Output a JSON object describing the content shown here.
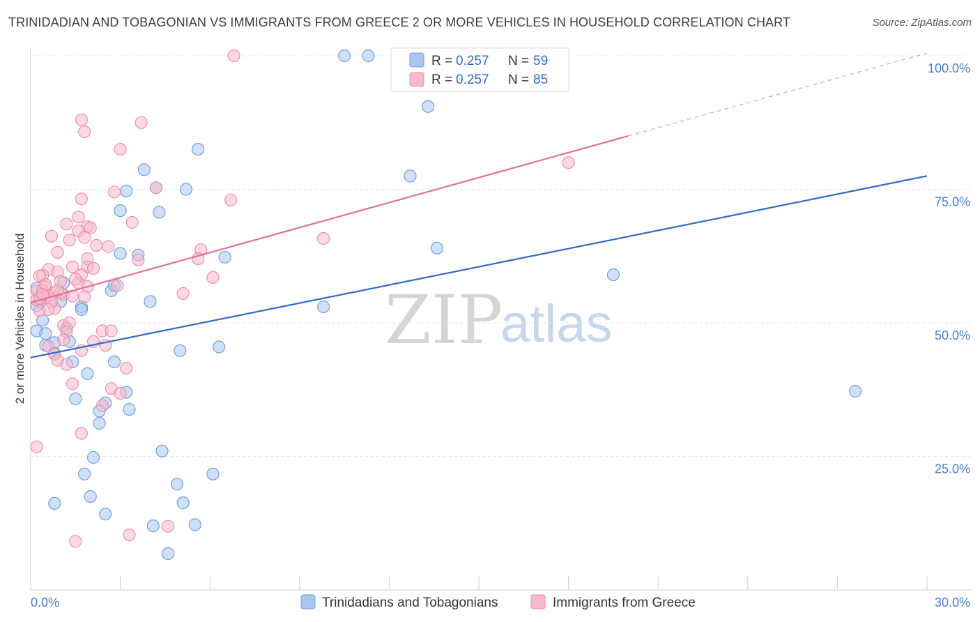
{
  "title": "TRINIDADIAN AND TOBAGONIAN VS IMMIGRANTS FROM GREECE 2 OR MORE VEHICLES IN HOUSEHOLD CORRELATION CHART",
  "source": "Source: ZipAtlas.com",
  "watermark": {
    "zip": "ZIP",
    "atlas": "atlas"
  },
  "colors": {
    "blue_fill": "#a9c6ef",
    "blue_stroke": "#6f9fe0",
    "blue_line": "#2f6bc4",
    "pink_fill": "#f7b9cb",
    "pink_stroke": "#ec8eac",
    "pink_line": "#e0709a"
  },
  "legend": {
    "r_label": "R =",
    "n_label": "N =",
    "blue": {
      "r": "0.257",
      "n": "59"
    },
    "pink": {
      "r": "0.257",
      "n": "85"
    }
  },
  "chart_data": {
    "type": "scatter",
    "title": "TRINIDADIAN AND TOBAGONIAN VS IMMIGRANTS FROM GREECE 2 OR MORE VEHICLES IN HOUSEHOLD CORRELATION CHART",
    "xlabel": "",
    "ylabel": "2 or more Vehicles in Household",
    "xlim": [
      0,
      30
    ],
    "ylim": [
      0,
      100
    ],
    "x_tick_labels": [
      "0.0%",
      "30.0%"
    ],
    "y_tick_labels": [
      "100.0%",
      "75.0%",
      "50.0%",
      "25.0%"
    ],
    "y_ticks": [
      100,
      75,
      50,
      25
    ],
    "series": [
      {
        "name": "Trinidadians and Tobagonians",
        "color": "blue",
        "trend": {
          "x": [
            0,
            30
          ],
          "y": [
            43.5,
            77.5
          ]
        },
        "points": [
          [
            10.5,
            100
          ],
          [
            11.3,
            100
          ],
          [
            13.3,
            90.5
          ],
          [
            5.6,
            82.5
          ],
          [
            3.8,
            78.7
          ],
          [
            3.2,
            74.7
          ],
          [
            4.2,
            75.3
          ],
          [
            5.2,
            75.0
          ],
          [
            12.7,
            77.5
          ],
          [
            3.0,
            71.0
          ],
          [
            4.3,
            70.7
          ],
          [
            6.5,
            62.3
          ],
          [
            3.0,
            63.0
          ],
          [
            3.6,
            62.7
          ],
          [
            13.6,
            64.0
          ],
          [
            19.5,
            59.0
          ],
          [
            1.1,
            57.5
          ],
          [
            2.7,
            56.0
          ],
          [
            2.8,
            57.0
          ],
          [
            0.2,
            56.5
          ],
          [
            0.3,
            54.0
          ],
          [
            1.0,
            54.0
          ],
          [
            1.7,
            53.0
          ],
          [
            1.7,
            52.5
          ],
          [
            4.0,
            54.0
          ],
          [
            9.8,
            53.0
          ],
          [
            0.4,
            50.5
          ],
          [
            1.2,
            49.0
          ],
          [
            0.2,
            48.5
          ],
          [
            0.5,
            48.0
          ],
          [
            0.8,
            46.3
          ],
          [
            1.3,
            46.5
          ],
          [
            0.5,
            45.8
          ],
          [
            5.0,
            44.8
          ],
          [
            6.3,
            45.5
          ],
          [
            0.8,
            44.3
          ],
          [
            1.4,
            42.7
          ],
          [
            2.8,
            42.7
          ],
          [
            1.9,
            40.5
          ],
          [
            27.6,
            37.2
          ],
          [
            3.2,
            37.0
          ],
          [
            1.5,
            35.8
          ],
          [
            2.5,
            35.0
          ],
          [
            2.3,
            33.5
          ],
          [
            3.3,
            33.8
          ],
          [
            2.3,
            31.2
          ],
          [
            4.4,
            26.0
          ],
          [
            2.1,
            24.8
          ],
          [
            1.8,
            21.7
          ],
          [
            6.1,
            21.7
          ],
          [
            4.9,
            19.8
          ],
          [
            2.0,
            17.5
          ],
          [
            0.8,
            16.2
          ],
          [
            5.1,
            16.3
          ],
          [
            2.5,
            14.2
          ],
          [
            4.1,
            12.0
          ],
          [
            5.5,
            12.2
          ],
          [
            4.6,
            6.8
          ],
          [
            0.2,
            53.2
          ]
        ]
      },
      {
        "name": "Immigrants from Greece",
        "color": "pink",
        "trend": {
          "x": [
            0,
            20
          ],
          "y": [
            53.8,
            85
          ]
        },
        "trend_dashed": {
          "x": [
            20,
            30
          ],
          "y": [
            85,
            100.5
          ]
        },
        "points": [
          [
            6.8,
            100
          ],
          [
            1.7,
            88.0
          ],
          [
            3.7,
            87.5
          ],
          [
            1.8,
            85.8
          ],
          [
            3.0,
            82.5
          ],
          [
            18.0,
            80.0
          ],
          [
            4.2,
            75.3
          ],
          [
            2.8,
            74.5
          ],
          [
            1.7,
            73.2
          ],
          [
            6.7,
            73.0
          ],
          [
            1.6,
            69.8
          ],
          [
            1.2,
            68.5
          ],
          [
            3.4,
            68.8
          ],
          [
            1.9,
            68.0
          ],
          [
            2.0,
            67.8
          ],
          [
            1.6,
            67.2
          ],
          [
            0.7,
            66.2
          ],
          [
            1.8,
            66.0
          ],
          [
            9.8,
            65.8
          ],
          [
            1.3,
            65.5
          ],
          [
            2.2,
            64.5
          ],
          [
            2.6,
            64.3
          ],
          [
            5.7,
            63.7
          ],
          [
            0.9,
            63.2
          ],
          [
            1.9,
            62.0
          ],
          [
            3.6,
            61.8
          ],
          [
            5.6,
            62.0
          ],
          [
            1.9,
            60.5
          ],
          [
            1.4,
            60.5
          ],
          [
            0.6,
            60.0
          ],
          [
            0.9,
            59.5
          ],
          [
            1.7,
            59.0
          ],
          [
            0.4,
            58.9
          ],
          [
            0.3,
            58.8
          ],
          [
            6.1,
            58.5
          ],
          [
            1.0,
            57.8
          ],
          [
            1.6,
            57.5
          ],
          [
            1.9,
            56.8
          ],
          [
            2.9,
            57.0
          ],
          [
            0.5,
            56.7
          ],
          [
            0.2,
            56.0
          ],
          [
            0.4,
            56.0
          ],
          [
            0.8,
            55.7
          ],
          [
            1.1,
            55.3
          ],
          [
            0.6,
            55.0
          ],
          [
            0.5,
            54.8
          ],
          [
            0.3,
            54.5
          ],
          [
            5.1,
            55.5
          ],
          [
            1.4,
            55.0
          ],
          [
            0.2,
            54.3
          ],
          [
            0.8,
            52.7
          ],
          [
            0.3,
            52.3
          ],
          [
            1.1,
            49.5
          ],
          [
            1.3,
            50.0
          ],
          [
            1.2,
            48.3
          ],
          [
            2.4,
            48.5
          ],
          [
            2.7,
            48.5
          ],
          [
            2.1,
            46.5
          ],
          [
            1.1,
            46.8
          ],
          [
            2.5,
            45.8
          ],
          [
            0.6,
            45.6
          ],
          [
            1.7,
            44.8
          ],
          [
            0.8,
            44.1
          ],
          [
            0.9,
            43.0
          ],
          [
            1.2,
            42.2
          ],
          [
            3.2,
            41.5
          ],
          [
            1.4,
            38.6
          ],
          [
            2.7,
            37.7
          ],
          [
            3.0,
            36.8
          ],
          [
            2.4,
            34.5
          ],
          [
            1.7,
            29.3
          ],
          [
            0.2,
            26.8
          ],
          [
            3.3,
            10.3
          ],
          [
            4.6,
            11.9
          ],
          [
            1.5,
            9.1
          ],
          [
            0.3,
            54.6
          ],
          [
            0.5,
            57.2
          ],
          [
            1.0,
            55.6
          ],
          [
            0.7,
            53.9
          ],
          [
            1.5,
            58.2
          ],
          [
            2.1,
            60.2
          ],
          [
            0.9,
            56.1
          ],
          [
            0.6,
            52.5
          ],
          [
            0.4,
            55.3
          ],
          [
            1.8,
            54.9
          ]
        ]
      }
    ],
    "legend_placement": "top-center"
  }
}
